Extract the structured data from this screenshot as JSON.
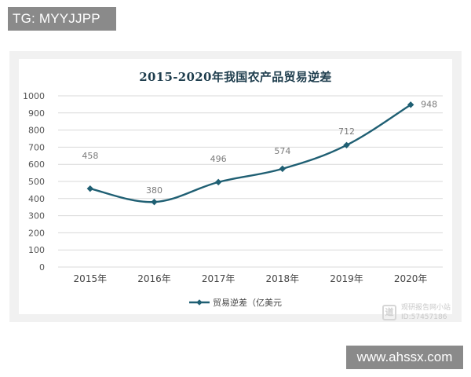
{
  "header_badge": {
    "text": "TG: MYYJJPP"
  },
  "footer_badge": {
    "text": "www.ahssx.com"
  },
  "watermark": {
    "line1": "观研报告网小站",
    "line2": "ID:57457186",
    "icon_glyph": "道"
  },
  "colors": {
    "series": "#1f5f73",
    "title": "#1f3e4e",
    "grid": "#d9d9d9",
    "axis_text": "#555555",
    "data_label": "#7a7a7a",
    "card_bg": "#f1f1f1"
  },
  "chart_data": {
    "type": "line",
    "title": "2015-2020年我国农产品贸易逆差",
    "categories": [
      "2015年",
      "2016年",
      "2017年",
      "2018年",
      "2019年",
      "2020年"
    ],
    "series": [
      {
        "name": "贸易逆差（亿美元",
        "values": [
          458,
          380,
          496,
          574,
          712,
          948
        ],
        "marker": "diamond"
      }
    ],
    "ylim": [
      0,
      1000
    ],
    "yticks": [
      0,
      100,
      200,
      300,
      400,
      500,
      600,
      700,
      800,
      900,
      1000
    ],
    "grid": true,
    "legend_position": "bottom-center",
    "data_labels": [
      "458",
      "380",
      "496",
      "574",
      "712",
      "948"
    ]
  }
}
